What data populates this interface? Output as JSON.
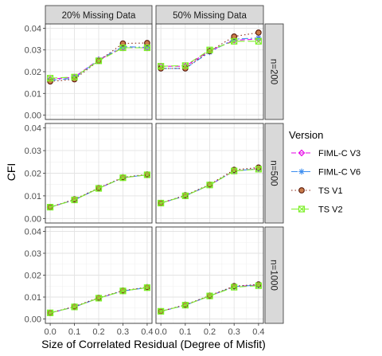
{
  "chart_data": {
    "type": "line",
    "xlabel": "Size of Correlated Residual (Degree of Misfit)",
    "ylabel": "CFI",
    "x": [
      0.0,
      0.1,
      0.2,
      0.3,
      0.4
    ],
    "x_tick_labels": [
      "0.0",
      "0.1",
      "0.2",
      "0.3",
      "0.4"
    ],
    "xlim": [
      -0.02,
      0.42
    ],
    "ylim": [
      -0.002,
      0.042
    ],
    "y_ticks": [
      0,
      0.01,
      0.02,
      0.03,
      0.04
    ],
    "y_tick_labels": [
      "0.00",
      "0.01",
      "0.02",
      "0.03",
      "0.04"
    ],
    "grid": true,
    "legend": {
      "title": "Version",
      "placement": "right",
      "entries": [
        {
          "name": "FIML-C V3",
          "color": "#e600e6",
          "marker": "diamond",
          "dash": "6,3"
        },
        {
          "name": "FIML-C V6",
          "color": "#3d8ef0",
          "marker": "asterisk",
          "dash": "8,3,2,3"
        },
        {
          "name": "TS V1",
          "color": "#8b2a1a",
          "marker": "circle",
          "dash": "1.5,3"
        },
        {
          "name": "TS V2",
          "color": "#7ef02a",
          "marker": "square-x",
          "dash": "9,4"
        }
      ]
    },
    "columns": [
      "20% Missing Data",
      "50% Missing Data"
    ],
    "rows": [
      "n=200",
      "n=500",
      "n=1000"
    ],
    "panels": [
      {
        "col": "20% Missing Data",
        "row": "n=200",
        "series": [
          {
            "name": "FIML-C V3",
            "values": [
              0.0165,
              0.0175,
              0.0255,
              0.031,
              0.031
            ]
          },
          {
            "name": "FIML-C V6",
            "values": [
              0.016,
              0.017,
              0.0255,
              0.0315,
              0.0312
            ]
          },
          {
            "name": "TS V1",
            "values": [
              0.0155,
              0.0165,
              0.025,
              0.033,
              0.0332
            ]
          },
          {
            "name": "TS V2",
            "values": [
              0.017,
              0.0175,
              0.025,
              0.031,
              0.031
            ]
          }
        ]
      },
      {
        "col": "50% Missing Data",
        "row": "n=200",
        "series": [
          {
            "name": "FIML-C V3",
            "values": [
              0.0225,
              0.0225,
              0.0295,
              0.0345,
              0.035
            ]
          },
          {
            "name": "FIML-C V6",
            "values": [
              0.0215,
              0.0215,
              0.029,
              0.035,
              0.0355
            ]
          },
          {
            "name": "TS V1",
            "values": [
              0.0215,
              0.0215,
              0.0295,
              0.0362,
              0.038
            ]
          },
          {
            "name": "TS V2",
            "values": [
              0.0225,
              0.0228,
              0.03,
              0.034,
              0.034
            ]
          }
        ]
      },
      {
        "col": "20% Missing Data",
        "row": "n=500",
        "series": [
          {
            "name": "FIML-C V3",
            "values": [
              0.005,
              0.0082,
              0.0133,
              0.018,
              0.0193
            ]
          },
          {
            "name": "FIML-C V6",
            "values": [
              0.005,
              0.0082,
              0.0133,
              0.018,
              0.0193
            ]
          },
          {
            "name": "TS V1",
            "values": [
              0.005,
              0.0085,
              0.0135,
              0.0182,
              0.0195
            ]
          },
          {
            "name": "TS V2",
            "values": [
              0.005,
              0.0082,
              0.0133,
              0.018,
              0.0193
            ]
          }
        ]
      },
      {
        "col": "50% Missing Data",
        "row": "n=500",
        "series": [
          {
            "name": "FIML-C V3",
            "values": [
              0.0068,
              0.01,
              0.0148,
              0.021,
              0.022
            ]
          },
          {
            "name": "FIML-C V6",
            "values": [
              0.0068,
              0.01,
              0.0148,
              0.021,
              0.022
            ]
          },
          {
            "name": "TS V1",
            "values": [
              0.0068,
              0.0103,
              0.015,
              0.0215,
              0.0225
            ]
          },
          {
            "name": "TS V2",
            "values": [
              0.0068,
              0.01,
              0.0148,
              0.021,
              0.0218
            ]
          }
        ]
      },
      {
        "col": "20% Missing Data",
        "row": "n=1000",
        "series": [
          {
            "name": "FIML-C V3",
            "values": [
              0.0028,
              0.0055,
              0.0095,
              0.0128,
              0.0143
            ]
          },
          {
            "name": "FIML-C V6",
            "values": [
              0.0028,
              0.0055,
              0.0095,
              0.0128,
              0.0143
            ]
          },
          {
            "name": "TS V1",
            "values": [
              0.0028,
              0.0057,
              0.0097,
              0.013,
              0.0145
            ]
          },
          {
            "name": "TS V2",
            "values": [
              0.0028,
              0.0055,
              0.0095,
              0.0128,
              0.0143
            ]
          }
        ]
      },
      {
        "col": "50% Missing Data",
        "row": "n=1000",
        "series": [
          {
            "name": "FIML-C V3",
            "values": [
              0.0035,
              0.0063,
              0.0105,
              0.0148,
              0.0155
            ]
          },
          {
            "name": "FIML-C V6",
            "values": [
              0.0035,
              0.0063,
              0.0105,
              0.0148,
              0.0155
            ]
          },
          {
            "name": "TS V1",
            "values": [
              0.0035,
              0.0065,
              0.0107,
              0.015,
              0.0158
            ]
          },
          {
            "name": "TS V2",
            "values": [
              0.0035,
              0.0063,
              0.0105,
              0.0145,
              0.0152
            ]
          }
        ]
      }
    ]
  }
}
